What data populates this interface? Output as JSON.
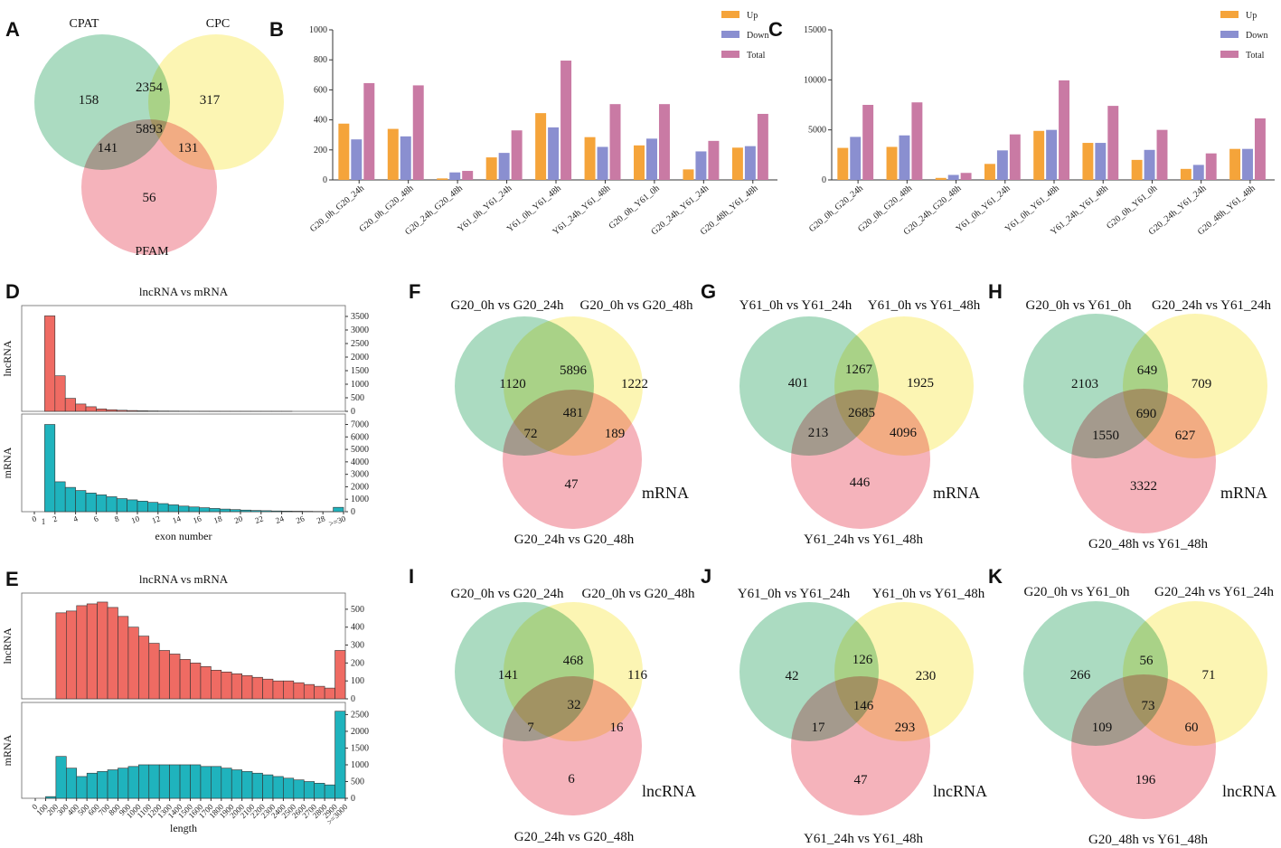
{
  "colors": {
    "venn_green": "#7ec8a0",
    "venn_yellow": "#fbef8a",
    "venn_red": "#f08a96",
    "up": "#f5a43a",
    "down": "#8a8fd0",
    "total": "#c97aa4",
    "lnc_bar": "#ef6b63",
    "mrna_bar": "#1fb3bd"
  },
  "panels": {
    "A": "A",
    "B": "B",
    "C": "C",
    "D": "D",
    "E": "E",
    "F": "F",
    "G": "G",
    "H": "H",
    "I": "I",
    "J": "J",
    "K": "K"
  },
  "chart_data": [
    {
      "id": "A",
      "type": "venn",
      "labels": [
        "CPAT",
        "CPC",
        "PFAM"
      ],
      "regions": {
        "a": "158",
        "b": "317",
        "c": "56",
        "ab": "2354",
        "ac": "141",
        "bc": "131",
        "abc": "5893"
      },
      "tag": ""
    },
    {
      "id": "B",
      "type": "bar",
      "categories": [
        "G20_0h_G20_24h",
        "G20_0h_G20_48h",
        "G20_24h_G20_48h",
        "Y61_0h_Y61_24h",
        "Y61_0h_Y61_48h",
        "Y61_24h_Y61_48h",
        "G20_0h_Y61_0h",
        "G20_24h_Y61_24h",
        "G20_48h_Y61_48h"
      ],
      "series": [
        {
          "name": "Up",
          "values": [
            375,
            340,
            10,
            150,
            445,
            285,
            230,
            70,
            215
          ]
        },
        {
          "name": "Down",
          "values": [
            270,
            290,
            50,
            180,
            350,
            220,
            275,
            190,
            225
          ]
        },
        {
          "name": "Total",
          "values": [
            645,
            630,
            60,
            330,
            795,
            505,
            505,
            260,
            440
          ]
        }
      ],
      "ylim": [
        0,
        1000
      ],
      "yticks": [
        "0",
        "200",
        "400",
        "600",
        "800",
        "1000"
      ],
      "legend_position": "top-right"
    },
    {
      "id": "C",
      "type": "bar",
      "categories": [
        "G20_0h_G20_24h",
        "G20_0h_G20_48h",
        "G20_24h_G20_48h",
        "Y61_0h_Y61_24h",
        "Y61_0h_Y61_48h",
        "Y61_24h_Y61_48h",
        "G20_0h_Y61_0h",
        "G20_24h_Y61_24h",
        "G20_48h_Y61_48h"
      ],
      "series": [
        {
          "name": "Up",
          "values": [
            3200,
            3300,
            200,
            1600,
            4900,
            3700,
            2000,
            1100,
            3100
          ]
        },
        {
          "name": "Down",
          "values": [
            4300,
            4450,
            500,
            2950,
            5000,
            3700,
            3000,
            1500,
            3100
          ]
        },
        {
          "name": "Total",
          "values": [
            7500,
            7750,
            700,
            4550,
            9950,
            7400,
            5000,
            2650,
            6150
          ]
        }
      ],
      "ylim": [
        0,
        15000
      ],
      "yticks": [
        "0",
        "5000",
        "10000",
        "15000"
      ],
      "legend_position": "top-right"
    },
    {
      "id": "D",
      "type": "bar",
      "title": "lncRNA vs mRNA",
      "xlabel": "exon number",
      "top": {
        "ylabel": "lncRNA",
        "yticks": [
          "0",
          "500",
          "1000",
          "1500",
          "2000",
          "2500",
          "3000",
          "3500"
        ],
        "ymax": 3700,
        "values": [
          0,
          3520,
          1310,
          480,
          270,
          170,
          90,
          60,
          40,
          30,
          20,
          15,
          12,
          10,
          8,
          6,
          5,
          4,
          3,
          2,
          2,
          1,
          1,
          1,
          1,
          0,
          0,
          0,
          0,
          0
        ]
      },
      "bottom": {
        "ylabel": "mRNA",
        "yticks": [
          "0",
          "1000",
          "2000",
          "3000",
          "4000",
          "5000",
          "6000",
          "7000"
        ],
        "ymax": 7400,
        "values": [
          0,
          7000,
          2400,
          1950,
          1700,
          1500,
          1350,
          1200,
          1050,
          950,
          850,
          750,
          650,
          550,
          450,
          380,
          320,
          260,
          210,
          170,
          130,
          100,
          80,
          60,
          50,
          40,
          30,
          20,
          15,
          350
        ]
      },
      "xticks": [
        "0",
        "2",
        "4",
        "6",
        "8",
        "10",
        "12",
        "14",
        "16",
        "18",
        "20",
        "22",
        "24",
        "26",
        "28",
        ">=30"
      ],
      "xtick0": "1"
    },
    {
      "id": "E",
      "type": "bar",
      "title": "lncRNA vs mRNA",
      "xlabel": "length",
      "top": {
        "ylabel": "lncRNA",
        "yticks": [
          "0",
          "100",
          "200",
          "300",
          "400",
          "500"
        ],
        "ymax": 560,
        "values": [
          0,
          0,
          480,
          490,
          520,
          530,
          540,
          510,
          460,
          400,
          350,
          310,
          270,
          250,
          220,
          200,
          180,
          160,
          150,
          140,
          130,
          120,
          110,
          100,
          100,
          90,
          80,
          70,
          60,
          270
        ]
      },
      "bottom": {
        "ylabel": "mRNA",
        "yticks": [
          "0",
          "500",
          "1000",
          "1500",
          "2000",
          "2500"
        ],
        "ymax": 2700,
        "values": [
          0,
          50,
          1250,
          900,
          650,
          750,
          800,
          850,
          900,
          950,
          1000,
          1000,
          1000,
          1000,
          1000,
          1000,
          950,
          950,
          900,
          850,
          800,
          750,
          700,
          650,
          600,
          550,
          500,
          450,
          400,
          2600
        ]
      },
      "xticks": [
        "0",
        "100",
        "200",
        "300",
        "400",
        "500",
        "600",
        "700",
        "800",
        "900",
        "1000",
        "1100",
        "1200",
        "1300",
        "1400",
        "1500",
        "1600",
        "1700",
        "1800",
        "1900",
        "2000",
        "2100",
        "2200",
        "2300",
        "2400",
        "2500",
        "2600",
        "2700",
        "2800",
        "2900",
        ">=3000"
      ]
    },
    {
      "id": "F",
      "type": "venn",
      "labels": [
        "G20_0h vs G20_24h",
        "G20_0h vs G20_48h",
        "G20_24h vs G20_48h"
      ],
      "regions": {
        "a": "1120",
        "b": "1222",
        "c": "47",
        "ab": "5896",
        "ac": "72",
        "bc": "189",
        "abc": "481"
      },
      "tag": "mRNA"
    },
    {
      "id": "G",
      "type": "venn",
      "labels": [
        "Y61_0h vs Y61_24h",
        "Y61_0h vs Y61_48h",
        "Y61_24h vs Y61_48h"
      ],
      "regions": {
        "a": "401",
        "b": "1925",
        "c": "446",
        "ab": "1267",
        "ac": "213",
        "bc": "4096",
        "abc": "2685"
      },
      "tag": "mRNA"
    },
    {
      "id": "H",
      "type": "venn",
      "labels": [
        "G20_0h vs Y61_0h",
        "G20_24h vs Y61_24h",
        "G20_48h vs Y61_48h"
      ],
      "regions": {
        "a": "2103",
        "b": "709",
        "c": "3322",
        "ab": "649",
        "ac": "1550",
        "bc": "627",
        "abc": "690"
      },
      "tag": "mRNA"
    },
    {
      "id": "I",
      "type": "venn",
      "labels": [
        "G20_0h vs G20_24h",
        "G20_0h vs G20_48h",
        "G20_24h vs G20_48h"
      ],
      "regions": {
        "a": "141",
        "b": "116",
        "c": "6",
        "ab": "468",
        "ac": "7",
        "bc": "16",
        "abc": "32"
      },
      "tag": "lncRNA"
    },
    {
      "id": "J",
      "type": "venn",
      "labels": [
        "Y61_0h vs Y61_24h",
        "Y61_0h vs Y61_48h",
        "Y61_24h vs Y61_48h"
      ],
      "regions": {
        "a": "42",
        "b": "230",
        "c": "47",
        "ab": "126",
        "ac": "17",
        "bc": "293",
        "abc": "146"
      },
      "tag": "lncRNA"
    },
    {
      "id": "K",
      "type": "venn",
      "labels": [
        "G20_0h vs Y61_0h",
        "G20_24h vs Y61_24h",
        "G20_48h vs Y61_48h"
      ],
      "regions": {
        "a": "266",
        "b": "71",
        "c": "196",
        "ab": "56",
        "ac": "109",
        "bc": "60",
        "abc": "73"
      },
      "tag": "lncRNA"
    }
  ]
}
